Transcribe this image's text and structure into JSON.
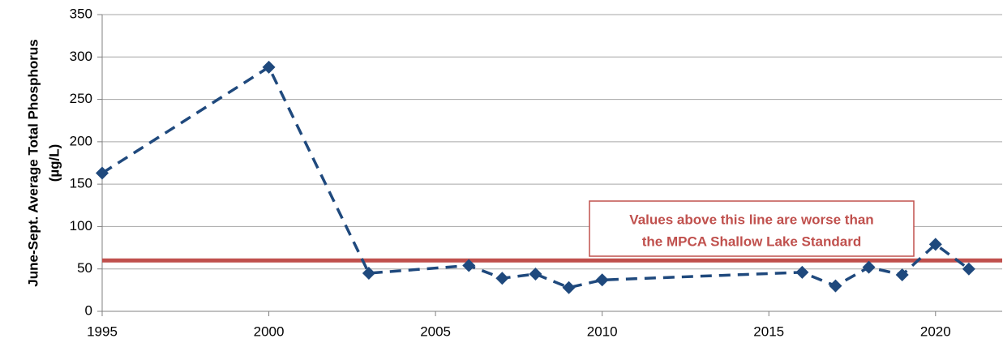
{
  "chart_data": {
    "type": "line",
    "y_label": [
      "June-Sept. Average Total Phosphorus",
      "(µg/L)"
    ],
    "x": [
      1995,
      2000,
      2003,
      2006,
      2007,
      2008,
      2009,
      2010,
      2016,
      2017,
      2018,
      2019,
      2020,
      2021
    ],
    "series": [
      {
        "color": "#1f497d",
        "values": [
          163,
          288,
          45,
          54,
          39,
          44,
          28,
          37,
          46,
          30,
          52,
          43,
          79,
          50
        ]
      }
    ],
    "xlim": [
      1995,
      2022
    ],
    "xticks": [
      1995,
      2000,
      2005,
      2010,
      2015,
      2020
    ],
    "ylim": [
      0,
      350
    ],
    "yticks": [
      0,
      50,
      100,
      150,
      200,
      250,
      300,
      350
    ],
    "grid": true,
    "reference_line": {
      "value": 60,
      "color": "#c0504d"
    },
    "annotation": [
      "Values above this line are worse than",
      "the MPCA Shallow Lake Standard"
    ]
  }
}
